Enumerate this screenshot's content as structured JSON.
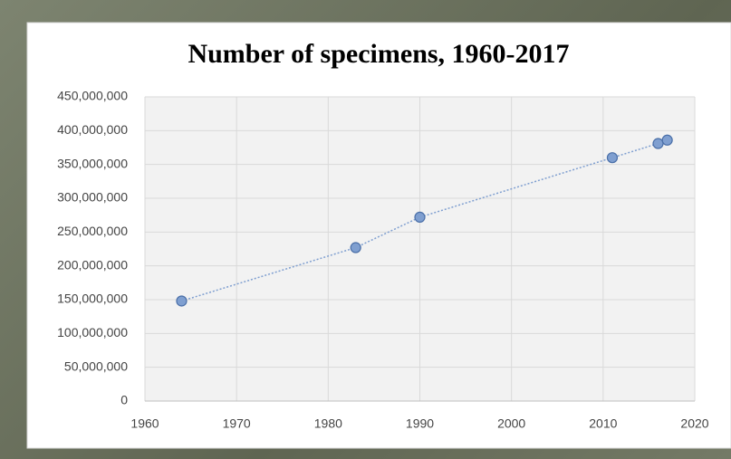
{
  "chart_data": {
    "type": "scatter",
    "title": "Number of specimens, 1960-2017",
    "x": [
      1964,
      1983,
      1990,
      2011,
      2016,
      2017
    ],
    "values": [
      148000000,
      227000000,
      272000000,
      360000000,
      381000000,
      386000000
    ],
    "color": "#7f9fd0",
    "xlim": [
      1960,
      2020
    ],
    "xticks": [
      1960,
      1970,
      1980,
      1990,
      2000,
      2010,
      2020
    ],
    "ylim": [
      0,
      450000000
    ],
    "yticks": [
      0,
      {
        "value": 50000000,
        "label": "50,000,000"
      },
      {
        "value": 100000000,
        "label": "100,000,000"
      },
      {
        "value": 150000000,
        "label": "150,000,000"
      },
      {
        "value": 200000000,
        "label": "200,000,000"
      },
      {
        "value": 250000000,
        "label": "250,000,000"
      },
      {
        "value": 300000000,
        "label": "300,000,000"
      },
      {
        "value": 350000000,
        "label": "350,000,000"
      },
      {
        "value": 400000000,
        "label": "400,000,000"
      },
      {
        "value": 450000000,
        "label": "450,000,000"
      }
    ],
    "grid": true
  }
}
